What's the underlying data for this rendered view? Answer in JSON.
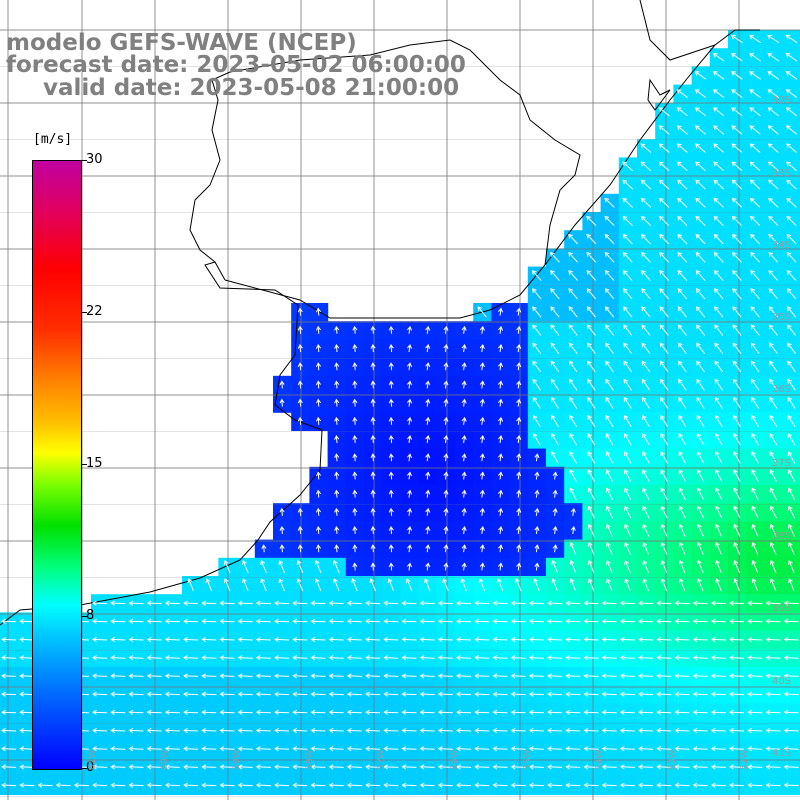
{
  "title": {
    "line1": "modelo GEFS-WAVE (NCEP)",
    "line2": "forecast date: 2023-05-02 06:00:00",
    "line3": "valid date: 2023-05-08 21:00:00"
  },
  "colorbar": {
    "unit": "[m/s]",
    "ticks": [
      "0",
      "8",
      "15",
      "22",
      "30"
    ],
    "colors": [
      "#0000ff",
      "#0070ff",
      "#00c8ff",
      "#00ffff",
      "#00ff80",
      "#00e000",
      "#ffff00",
      "#ff8000",
      "#ff0000",
      "#c000a0"
    ]
  },
  "lat_labels": [
    "32S",
    "33S",
    "34S",
    "35S",
    "36S",
    "37S",
    "38S",
    "39S",
    "40S",
    "41S"
  ],
  "lon_labels": [
    "61W",
    "60W",
    "59W",
    "58W",
    "57W",
    "56W",
    "55W",
    "54W",
    "53W",
    "52W",
    "51W"
  ],
  "map": {
    "land_color": "#ffffff",
    "coast_color": "#000000",
    "grid_color": "#777777",
    "arrow_color": "#ffffff",
    "regions": {
      "estuary_speed_ms": 2,
      "shelf_speed_ms": 7,
      "offshore_speed_ms": 10
    }
  }
}
